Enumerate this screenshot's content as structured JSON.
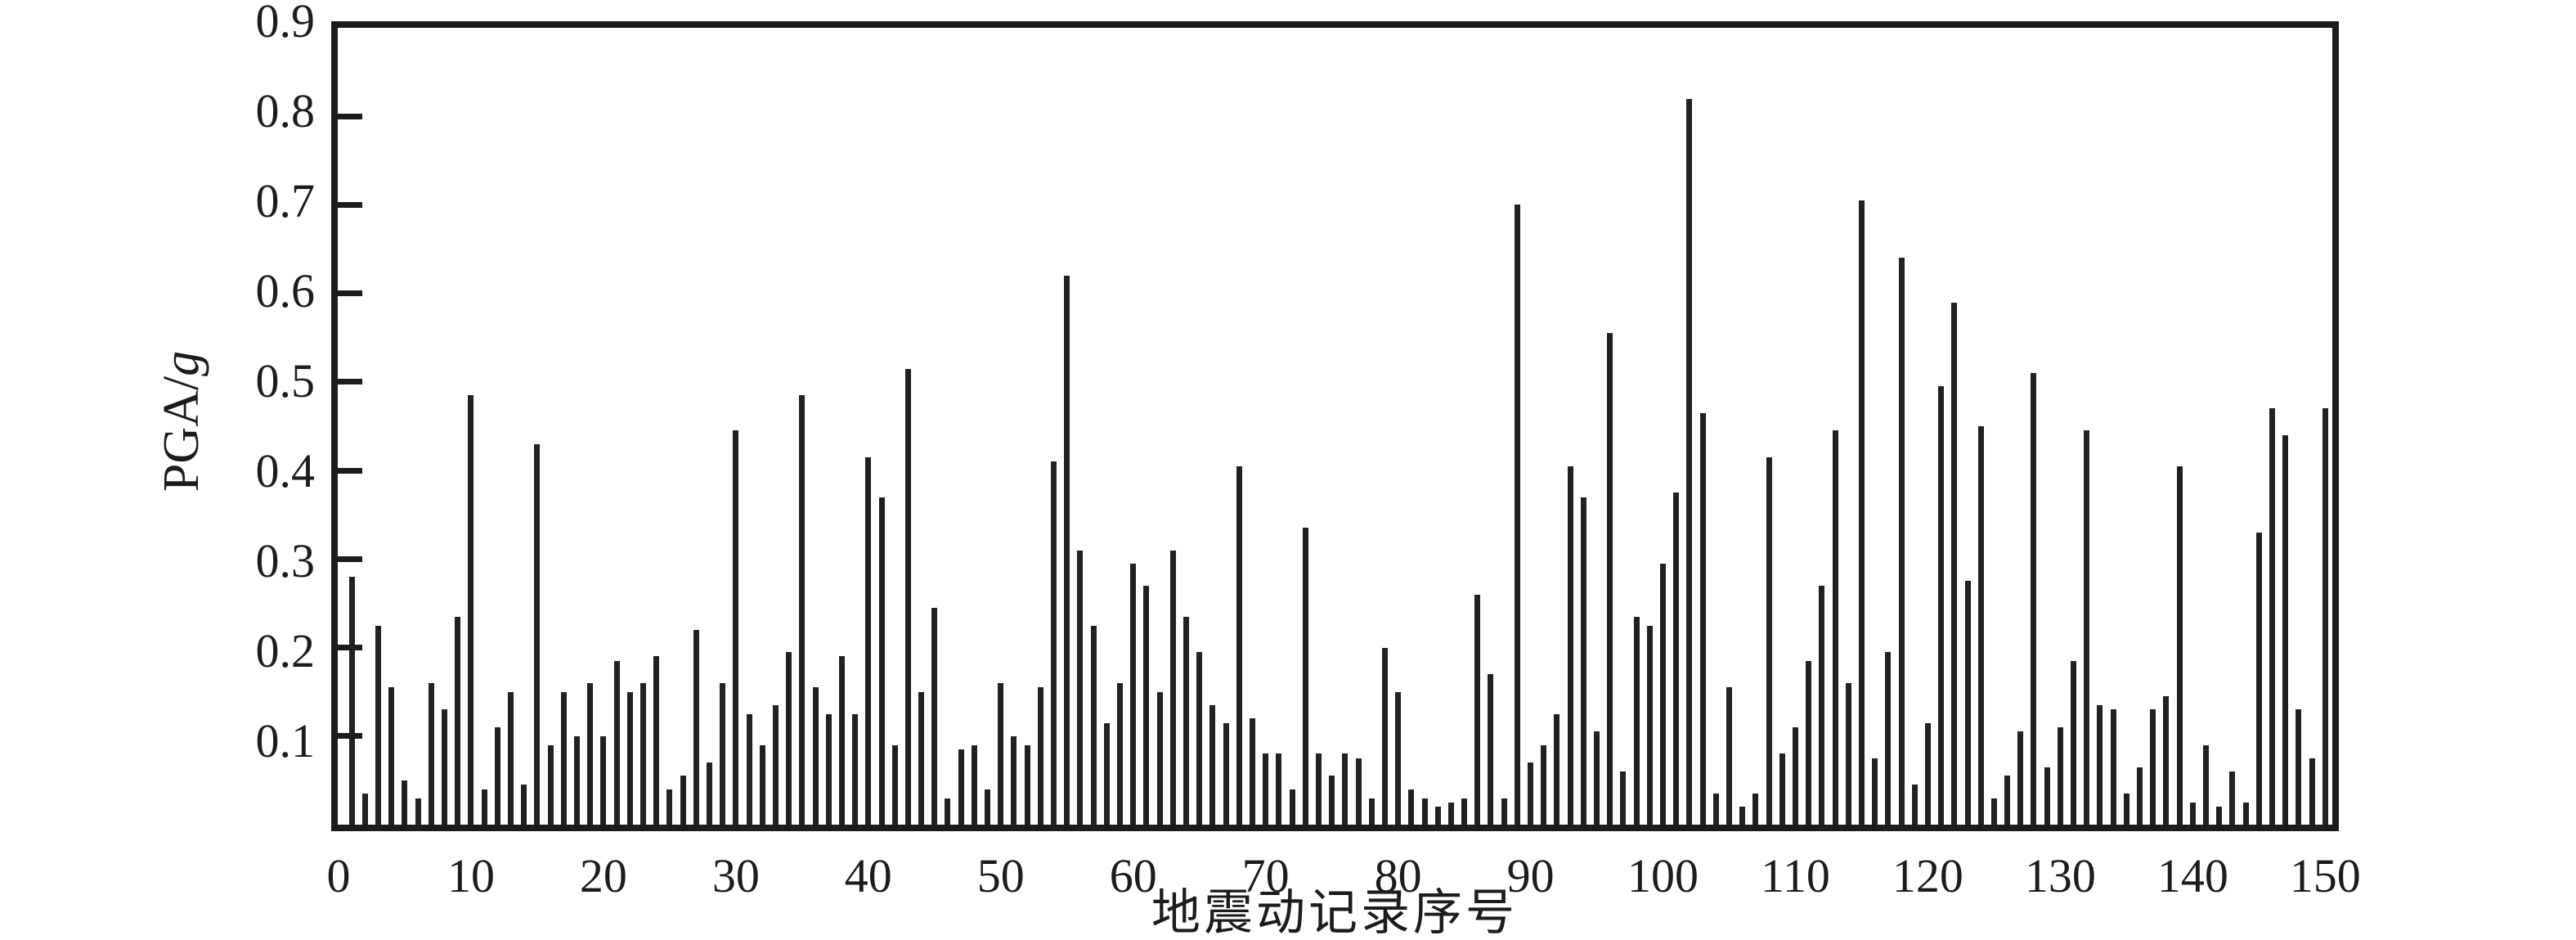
{
  "chart_data": {
    "type": "bar",
    "title": "",
    "xlabel": "地震动记录序号",
    "ylabel": "PGA/g",
    "x_start": 1,
    "x_end": 150,
    "xlim": [
      0,
      150.6
    ],
    "ylim": [
      0,
      0.9
    ],
    "yticks": [
      0.1,
      0.2,
      0.3,
      0.4,
      0.5,
      0.6,
      0.7,
      0.8,
      0.9
    ],
    "ytick_labels": [
      "0.1",
      "0.2",
      "0.3",
      "0.4",
      "0.5",
      "0.6",
      "0.7",
      "0.8",
      "0.9"
    ],
    "xticks": [
      0,
      10,
      20,
      30,
      40,
      50,
      60,
      70,
      80,
      90,
      100,
      110,
      120,
      130,
      140,
      150
    ],
    "xtick_labels": [
      "0",
      "10",
      "20",
      "30",
      "40",
      "50",
      "60",
      "70",
      "80",
      "90",
      "100",
      "110",
      "120",
      "130",
      "140",
      "150"
    ],
    "grid": false,
    "legend": null,
    "bar_color": "#212121",
    "frame_color": "#1c1c1c",
    "background_color": "#ffffff",
    "values": [
      0.28,
      0.035,
      0.225,
      0.155,
      0.05,
      0.03,
      0.16,
      0.13,
      0.235,
      0.485,
      0.04,
      0.11,
      0.15,
      0.045,
      0.43,
      0.09,
      0.15,
      0.1,
      0.16,
      0.1,
      0.185,
      0.15,
      0.16,
      0.19,
      0.04,
      0.055,
      0.22,
      0.07,
      0.16,
      0.445,
      0.125,
      0.09,
      0.135,
      0.195,
      0.485,
      0.155,
      0.125,
      0.19,
      0.125,
      0.415,
      0.37,
      0.09,
      0.515,
      0.15,
      0.245,
      0.03,
      0.085,
      0.09,
      0.04,
      0.16,
      0.1,
      0.09,
      0.155,
      0.41,
      0.62,
      0.31,
      0.225,
      0.115,
      0.16,
      0.295,
      0.27,
      0.15,
      0.31,
      0.235,
      0.195,
      0.135,
      0.115,
      0.405,
      0.12,
      0.08,
      0.08,
      0.04,
      0.335,
      0.08,
      0.055,
      0.08,
      0.075,
      0.03,
      0.2,
      0.15,
      0.04,
      0.03,
      0.02,
      0.025,
      0.03,
      0.26,
      0.17,
      0.03,
      0.7,
      0.07,
      0.09,
      0.125,
      0.405,
      0.37,
      0.105,
      0.555,
      0.06,
      0.235,
      0.225,
      0.295,
      0.375,
      0.82,
      0.465,
      0.035,
      0.155,
      0.02,
      0.035,
      0.415,
      0.08,
      0.11,
      0.185,
      0.27,
      0.445,
      0.16,
      0.705,
      0.075,
      0.195,
      0.64,
      0.045,
      0.115,
      0.495,
      0.59,
      0.275,
      0.45,
      0.03,
      0.055,
      0.105,
      0.51,
      0.065,
      0.11,
      0.185,
      0.445,
      0.135,
      0.13,
      0.035,
      0.065,
      0.13,
      0.145,
      0.405,
      0.025,
      0.09,
      0.02,
      0.06,
      0.025,
      0.33,
      0.47,
      0.44,
      0.13,
      0.075,
      0.47
    ]
  }
}
